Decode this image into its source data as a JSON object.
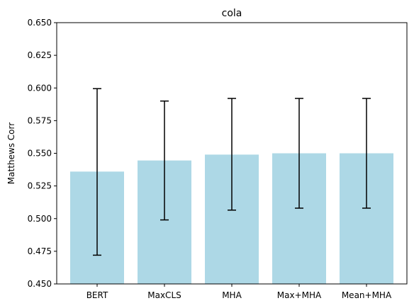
{
  "chart_data": {
    "type": "bar",
    "title": "cola",
    "xlabel": "",
    "ylabel": "Matthews Corr",
    "ylim": [
      0.45,
      0.65
    ],
    "yticks": [
      0.45,
      0.475,
      0.5,
      0.525,
      0.55,
      0.575,
      0.6,
      0.625,
      0.65
    ],
    "ytick_labels": [
      "0.450",
      "0.475",
      "0.500",
      "0.525",
      "0.550",
      "0.575",
      "0.600",
      "0.625",
      "0.650"
    ],
    "categories": [
      "BERT",
      "MaxCLS",
      "MHA",
      "Max+MHA",
      "Mean+MHA"
    ],
    "values": [
      0.536,
      0.5445,
      0.549,
      0.55,
      0.55
    ],
    "error_low": [
      0.472,
      0.499,
      0.5065,
      0.508,
      0.508
    ],
    "error_high": [
      0.5995,
      0.59,
      0.592,
      0.592,
      0.592
    ],
    "bar_color": "#add8e6",
    "error_color": "#000000",
    "grid": false,
    "legend": "none"
  }
}
